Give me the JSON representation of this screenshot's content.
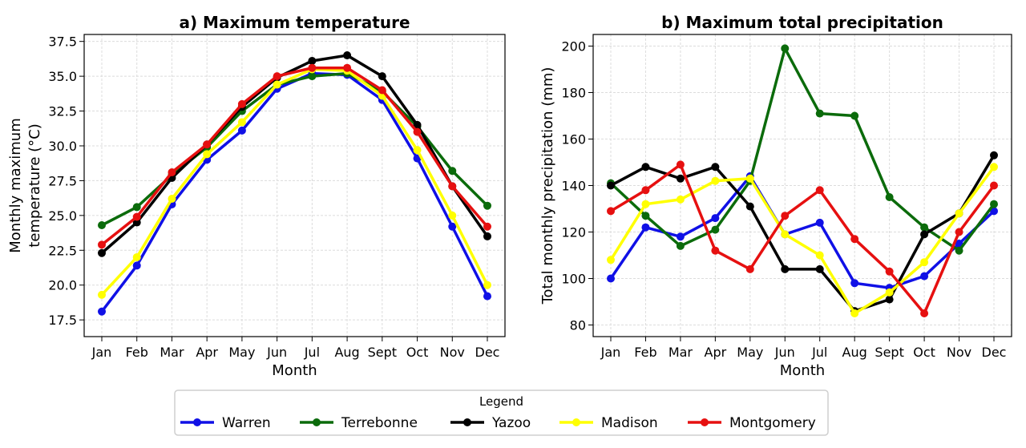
{
  "chart_data": [
    {
      "type": "line",
      "title": "a) Maximum temperature",
      "xlabel": "Month",
      "ylabel_lines": [
        "Monthly maximum",
        "temperature (°C)"
      ],
      "categories": [
        "Jan",
        "Feb",
        "Mar",
        "Apr",
        "May",
        "Jun",
        "Jul",
        "Aug",
        "Sept",
        "Oct",
        "Nov",
        "Dec"
      ],
      "ylim": [
        16.3,
        38.0
      ],
      "yticks": [
        17.5,
        20.0,
        22.5,
        25.0,
        27.5,
        30.0,
        32.5,
        35.0,
        37.5
      ],
      "ytick_labels": [
        "17.5",
        "20.0",
        "22.5",
        "25.0",
        "27.5",
        "30.0",
        "32.5",
        "35.0",
        "37.5"
      ],
      "grid": true,
      "series": [
        {
          "name": "Warren",
          "color": "#1010e6",
          "values": [
            18.1,
            21.4,
            25.8,
            29.0,
            31.1,
            34.1,
            35.2,
            35.1,
            33.3,
            29.1,
            24.2,
            19.2
          ]
        },
        {
          "name": "Terrebonne",
          "color": "#0b6b0b",
          "values": [
            24.3,
            25.6,
            27.9,
            29.9,
            32.5,
            34.4,
            35.0,
            35.2,
            33.9,
            31.4,
            28.2,
            25.7
          ]
        },
        {
          "name": "Yazoo",
          "color": "#000000",
          "values": [
            22.3,
            24.5,
            27.7,
            30.1,
            32.8,
            34.9,
            36.1,
            36.5,
            35.0,
            31.5,
            27.1,
            23.5
          ]
        },
        {
          "name": "Madison",
          "color": "#ffff00",
          "values": [
            19.3,
            22.0,
            26.2,
            29.4,
            31.7,
            34.4,
            35.5,
            35.4,
            33.6,
            29.7,
            25.0,
            20.0
          ]
        },
        {
          "name": "Montgomery",
          "color": "#e61010",
          "values": [
            22.9,
            24.9,
            28.1,
            30.1,
            33.0,
            35.0,
            35.6,
            35.6,
            34.0,
            31.0,
            27.1,
            24.2
          ]
        }
      ]
    },
    {
      "type": "line",
      "title": "b) Maximum total precipitation",
      "xlabel": "Month",
      "ylabel_lines": [
        "Total monthly precipitation (mm)"
      ],
      "categories": [
        "Jan",
        "Feb",
        "Mar",
        "Apr",
        "May",
        "Jun",
        "Jul",
        "Aug",
        "Sept",
        "Oct",
        "Nov",
        "Dec"
      ],
      "ylim": [
        75,
        205
      ],
      "yticks": [
        80,
        100,
        120,
        140,
        160,
        180,
        200
      ],
      "ytick_labels": [
        "80",
        "100",
        "120",
        "140",
        "160",
        "180",
        "200"
      ],
      "grid": true,
      "series": [
        {
          "name": "Warren",
          "color": "#1010e6",
          "values": [
            100,
            122,
            118,
            126,
            144,
            119,
            124,
            98,
            96,
            101,
            115,
            129
          ]
        },
        {
          "name": "Terrebonne",
          "color": "#0b6b0b",
          "values": [
            141,
            127,
            114,
            121,
            142,
            199,
            171,
            170,
            135,
            122,
            112,
            132
          ]
        },
        {
          "name": "Yazoo",
          "color": "#000000",
          "values": [
            140,
            148,
            143,
            148,
            131,
            104,
            104,
            86,
            91,
            119,
            128,
            153
          ]
        },
        {
          "name": "Madison",
          "color": "#ffff00",
          "values": [
            108,
            132,
            134,
            142,
            143,
            119,
            110,
            85,
            94,
            107,
            128,
            148
          ]
        },
        {
          "name": "Montgomery",
          "color": "#e61010",
          "values": [
            129,
            138,
            149,
            112,
            104,
            127,
            138,
            117,
            103,
            85,
            120,
            140
          ]
        }
      ]
    }
  ],
  "legend": {
    "title": "Legend",
    "entries": [
      "Warren",
      "Terrebonne",
      "Yazoo",
      "Madison",
      "Montgomery"
    ],
    "colors": [
      "#1010e6",
      "#0b6b0b",
      "#000000",
      "#ffff00",
      "#e61010"
    ]
  }
}
